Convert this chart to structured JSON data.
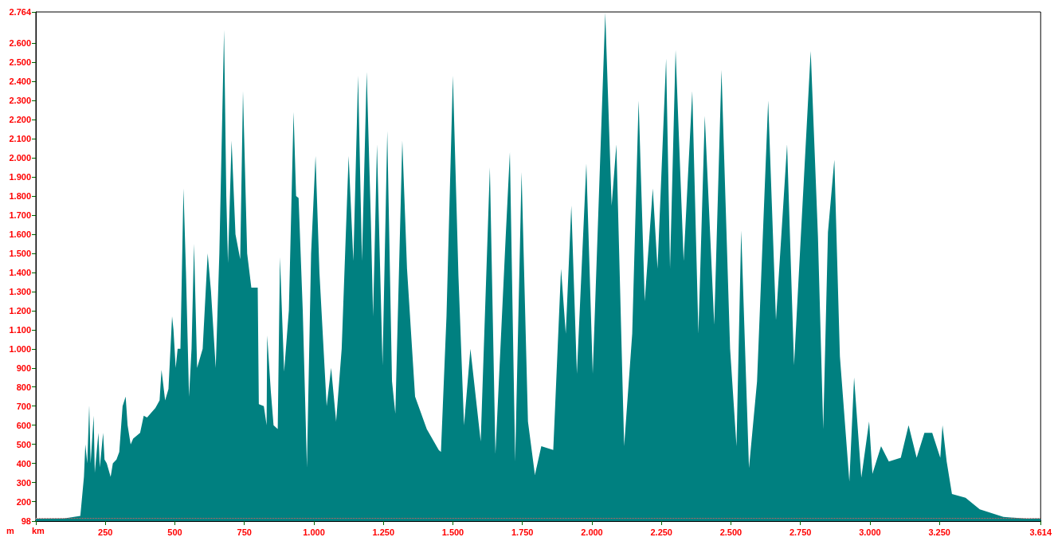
{
  "chart_data": {
    "type": "area",
    "xlabel": "km",
    "ylabel": "m",
    "x": [
      0,
      100,
      160,
      173,
      178,
      185,
      192,
      197,
      208,
      212,
      225,
      230,
      242,
      247,
      255,
      269,
      277,
      290,
      300,
      312,
      323,
      330,
      341,
      350,
      375,
      388,
      400,
      430,
      445,
      452,
      465,
      477,
      490,
      495,
      503,
      510,
      520,
      531,
      540,
      551,
      560,
      569,
      580,
      600,
      618,
      630,
      647,
      660,
      677,
      685,
      691,
      704,
      718,
      735,
      745,
      760,
      775,
      798,
      802,
      820,
      830,
      832,
      845,
      855,
      870,
      878,
      893,
      910,
      927,
      936,
      945,
      960,
      975,
      990,
      1006,
      1020,
      1046,
      1062,
      1080,
      1100,
      1125,
      1142,
      1159,
      1173,
      1190,
      1205,
      1213,
      1227,
      1247,
      1264,
      1281,
      1293,
      1318,
      1335,
      1364,
      1406,
      1449,
      1457,
      1477,
      1500,
      1520,
      1540,
      1563,
      1600,
      1633,
      1653,
      1690,
      1705,
      1724,
      1747,
      1770,
      1795,
      1818,
      1861,
      1889,
      1906,
      1926,
      1946,
      1980,
      2003,
      2048,
      2071,
      2088,
      2116,
      2145,
      2168,
      2190,
      2219,
      2236,
      2267,
      2281,
      2301,
      2330,
      2361,
      2383,
      2406,
      2440,
      2466,
      2497,
      2520,
      2537,
      2565,
      2594,
      2634,
      2662,
      2702,
      2727,
      2750,
      2787,
      2813,
      2832,
      2849,
      2872,
      2892,
      2926,
      2943,
      2969,
      2997,
      3009,
      3040,
      3068,
      3111,
      3139,
      3168,
      3196,
      3224,
      3253,
      3261,
      3276,
      3295,
      3344,
      3395,
      3480,
      3565,
      3614
    ],
    "series": [
      {
        "color": "#008080",
        "values": [
          110,
          112,
          125,
          330,
          500,
          400,
          705,
          400,
          650,
          350,
          560,
          380,
          560,
          420,
          400,
          330,
          400,
          420,
          460,
          700,
          750,
          600,
          500,
          530,
          560,
          650,
          640,
          690,
          730,
          890,
          730,
          790,
          1170,
          1100,
          900,
          1000,
          1000,
          1840,
          1400,
          750,
          1000,
          1550,
          900,
          1000,
          1500,
          1300,
          900,
          1500,
          2670,
          1800,
          1450,
          2090,
          1600,
          1470,
          2350,
          1500,
          1320,
          1320,
          710,
          700,
          600,
          1070,
          780,
          600,
          580,
          1480,
          880,
          1200,
          2240,
          1800,
          1790,
          1200,
          380,
          1500,
          2010,
          1400,
          700,
          900,
          620,
          1000,
          2010,
          1460,
          2430,
          1460,
          2450,
          1670,
          1170,
          2070,
          915,
          2140,
          830,
          660,
          2090,
          1420,
          750,
          580,
          470,
          460,
          1170,
          2430,
          1380,
          600,
          1000,
          515,
          1950,
          450,
          1590,
          2030,
          410,
          1925,
          620,
          340,
          490,
          470,
          1420,
          1080,
          1750,
          870,
          1970,
          870,
          2760,
          1750,
          2070,
          490,
          1080,
          2300,
          1250,
          1840,
          1420,
          2520,
          1420,
          2565,
          1460,
          2350,
          1080,
          2220,
          1125,
          2460,
          1000,
          490,
          1620,
          375,
          830,
          2300,
          1150,
          2070,
          915,
          1550,
          2560,
          1590,
          580,
          1610,
          1990,
          960,
          305,
          850,
          325,
          620,
          345,
          490,
          410,
          430,
          600,
          430,
          560,
          560,
          430,
          600,
          410,
          240,
          220,
          160,
          120,
          110,
          112
        ]
      }
    ],
    "xlim": [
      0,
      3614
    ],
    "xticks": [
      {
        "value": 0,
        "label": null
      },
      250,
      500,
      750,
      {
        "value": 1000,
        "label": "1.000"
      },
      {
        "value": 1250,
        "label": "1.250"
      },
      {
        "value": 1500,
        "label": "1.500"
      },
      {
        "value": 1750,
        "label": "1.750"
      },
      {
        "value": 2000,
        "label": "2.000"
      },
      {
        "value": 2250,
        "label": "2.250"
      },
      {
        "value": 2500,
        "label": "2.500"
      },
      {
        "value": 2750,
        "label": "2.750"
      },
      {
        "value": 3000,
        "label": "3.000"
      },
      {
        "value": 3250,
        "label": "3.250"
      },
      {
        "value": 3614,
        "label": "3.614"
      }
    ],
    "ylim": [
      98,
      2764
    ],
    "yticks": [
      98,
      200,
      300,
      400,
      500,
      600,
      700,
      800,
      900,
      {
        "value": 1000,
        "label": "1.000"
      },
      {
        "value": 1100,
        "label": "1.100"
      },
      {
        "value": 1200,
        "label": "1.200"
      },
      {
        "value": 1300,
        "label": "1.300"
      },
      {
        "value": 1400,
        "label": "1.400"
      },
      {
        "value": 1500,
        "label": "1.500"
      },
      {
        "value": 1600,
        "label": "1.600"
      },
      {
        "value": 1700,
        "label": "1.700"
      },
      {
        "value": 1800,
        "label": "1.800"
      },
      {
        "value": 1900,
        "label": "1.900"
      },
      {
        "value": 2000,
        "label": "2.000"
      },
      {
        "value": 2100,
        "label": "2.100"
      },
      {
        "value": 2200,
        "label": "2.200"
      },
      {
        "value": 2300,
        "label": "2.300"
      },
      {
        "value": 2400,
        "label": "2.400"
      },
      {
        "value": 2500,
        "label": "2.500"
      },
      {
        "value": 2600,
        "label": "2.600"
      },
      {
        "value": 2764,
        "label": "2.764"
      }
    ],
    "ref_lines": [
      {
        "axis": "y",
        "value": 115,
        "color": "#e06060",
        "line_style": "dotted"
      }
    ],
    "grid": false,
    "marker": "none"
  }
}
